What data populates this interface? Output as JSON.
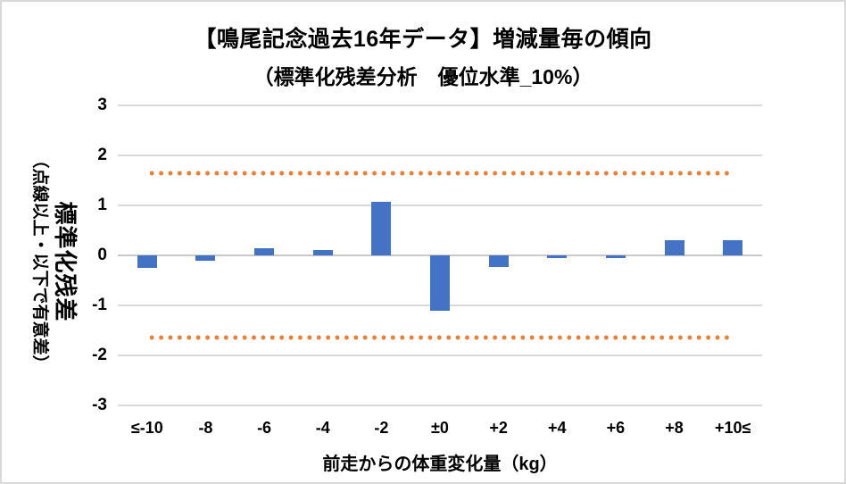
{
  "chart": {
    "title": "【鳴尾記念過去16年データ】増減量毎の傾向",
    "subtitle": "（標準化残差分析　優位水準_10%）",
    "y_axis": {
      "title": "標準化残差",
      "subtitle": "（点線以上・以下で有意差）",
      "ticks": [
        "3",
        "2",
        "1",
        "0",
        "-1",
        "-2",
        "-3"
      ]
    },
    "x_axis": {
      "title": "前走からの体重変化量（kg）"
    }
  },
  "chart_data": {
    "type": "bar",
    "title": "【鳴尾記念過去16年データ】増減量毎の傾向",
    "subtitle": "（標準化残差分析　優位水準_10%）",
    "categories": [
      "≤-10",
      "-8",
      "-6",
      "-4",
      "-2",
      "±0",
      "+2",
      "+4",
      "+6",
      "+8",
      "+10≤"
    ],
    "values": [
      -0.25,
      -0.11,
      0.14,
      0.1,
      1.08,
      -1.1,
      -0.24,
      -0.06,
      -0.06,
      0.3,
      0.3
    ],
    "significance_lines": [
      1.645,
      -1.645
    ],
    "significance_line_style": "dotted",
    "xlabel": "前走からの体重変化量（kg）",
    "ylabel": "標準化残差（点線以上・以下で有意差）",
    "ylim": [
      -3,
      3
    ],
    "y_tick_step": 1,
    "grid": true,
    "legend": false,
    "colors": {
      "bar": "#4472C4",
      "significance_line": "#ED7D31",
      "gridline": "#D9D9D9",
      "text": "#000000"
    }
  }
}
